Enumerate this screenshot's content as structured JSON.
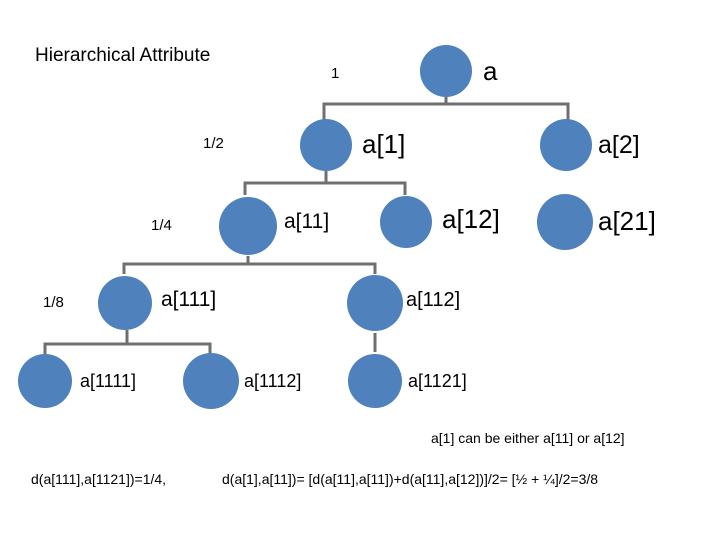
{
  "title": "Hierarchical Attribute",
  "node_color": "#4f81bd",
  "line_color": "#6f6f6f",
  "levels": [
    "1",
    "1/2",
    "1/4",
    "1/8"
  ],
  "nodes": {
    "a": "a",
    "a1": "a[1]",
    "a2": "a[2]",
    "a11": "a[11]",
    "a12": "a[12]",
    "a21": "a[21]",
    "a111": "a[111]",
    "a112": "a[112]",
    "a1111": "a[1111]",
    "a1112": "a[1112]",
    "a1121": "a[1121]"
  },
  "notes": {
    "either": "a[1] can be either a[11] or a[12]",
    "d1": "d(a[111],a[1121])=1/4,",
    "d2": "d(a[1],a[11])= [d(a[11],a[11])+d(a[11],a[12])]/2= [½ + ¼]/2=3/8"
  }
}
